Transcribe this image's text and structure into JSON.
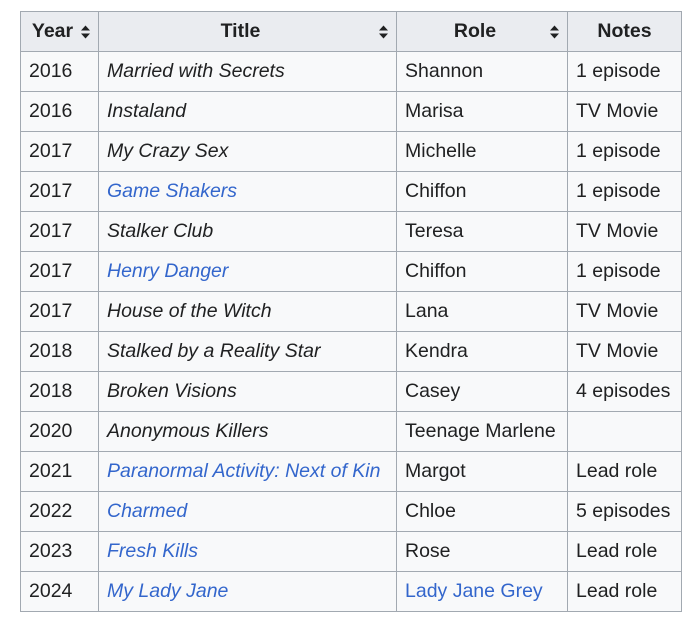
{
  "table": {
    "headers": {
      "year": "Year",
      "title": "Title",
      "role": "Role",
      "notes": "Notes"
    },
    "link_color": "#3366cc",
    "rows": [
      {
        "year": "2016",
        "title": "Married with Secrets",
        "title_link": false,
        "role": "Shannon",
        "role_link": false,
        "notes": "1 episode"
      },
      {
        "year": "2016",
        "title": "Instaland",
        "title_link": false,
        "role": "Marisa",
        "role_link": false,
        "notes": "TV Movie"
      },
      {
        "year": "2017",
        "title": "My Crazy Sex",
        "title_link": false,
        "role": "Michelle",
        "role_link": false,
        "notes": "1 episode"
      },
      {
        "year": "2017",
        "title": "Game Shakers",
        "title_link": true,
        "role": "Chiffon",
        "role_link": false,
        "notes": "1 episode"
      },
      {
        "year": "2017",
        "title": "Stalker Club",
        "title_link": false,
        "role": "Teresa",
        "role_link": false,
        "notes": "TV Movie"
      },
      {
        "year": "2017",
        "title": "Henry Danger",
        "title_link": true,
        "role": "Chiffon",
        "role_link": false,
        "notes": "1 episode"
      },
      {
        "year": "2017",
        "title": "House of the Witch",
        "title_link": false,
        "role": "Lana",
        "role_link": false,
        "notes": "TV Movie"
      },
      {
        "year": "2018",
        "title": "Stalked by a Reality Star",
        "title_link": false,
        "role": "Kendra",
        "role_link": false,
        "notes": "TV Movie"
      },
      {
        "year": "2018",
        "title": "Broken Visions",
        "title_link": false,
        "role": "Casey",
        "role_link": false,
        "notes": "4 episodes"
      },
      {
        "year": "2020",
        "title": "Anonymous Killers",
        "title_link": false,
        "role": "Teenage Marlene",
        "role_link": false,
        "notes": ""
      },
      {
        "year": "2021",
        "title": "Paranormal Activity: Next of Kin",
        "title_link": true,
        "role": "Margot",
        "role_link": false,
        "notes": "Lead role"
      },
      {
        "year": "2022",
        "title": "Charmed",
        "title_link": true,
        "role": "Chloe",
        "role_link": false,
        "notes": "5 episodes"
      },
      {
        "year": "2023",
        "title": "Fresh Kills",
        "title_link": true,
        "role": "Rose",
        "role_link": false,
        "notes": "Lead role"
      },
      {
        "year": "2024",
        "title": "My Lady Jane",
        "title_link": true,
        "role": "Lady Jane Grey",
        "role_link": true,
        "notes": "Lead role"
      }
    ]
  }
}
